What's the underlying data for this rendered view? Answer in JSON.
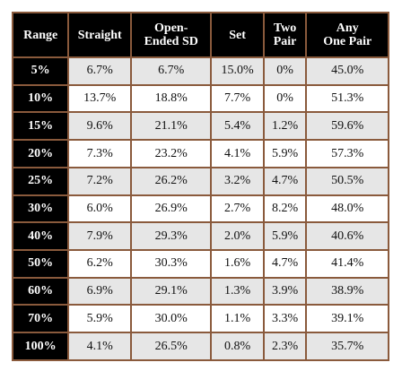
{
  "table": {
    "headers": [
      {
        "lines": [
          "Range"
        ]
      },
      {
        "lines": [
          "Straight"
        ]
      },
      {
        "lines": [
          "Open-",
          "Ended SD"
        ]
      },
      {
        "lines": [
          "Set"
        ]
      },
      {
        "lines": [
          "Two",
          "Pair"
        ]
      },
      {
        "lines": [
          "Any",
          "One Pair"
        ]
      }
    ],
    "rows": [
      {
        "range": "5%",
        "straight": "6.7%",
        "open_ended_sd": "6.7%",
        "set": "15.0%",
        "two_pair": "0%",
        "any_one_pair": "45.0%"
      },
      {
        "range": "10%",
        "straight": "13.7%",
        "open_ended_sd": "18.8%",
        "set": "7.7%",
        "two_pair": "0%",
        "any_one_pair": "51.3%"
      },
      {
        "range": "15%",
        "straight": "9.6%",
        "open_ended_sd": "21.1%",
        "set": "5.4%",
        "two_pair": "1.2%",
        "any_one_pair": "59.6%"
      },
      {
        "range": "20%",
        "straight": "7.3%",
        "open_ended_sd": "23.2%",
        "set": "4.1%",
        "two_pair": "5.9%",
        "any_one_pair": "57.3%"
      },
      {
        "range": "25%",
        "straight": "7.2%",
        "open_ended_sd": "26.2%",
        "set": "3.2%",
        "two_pair": "4.7%",
        "any_one_pair": "50.5%"
      },
      {
        "range": "30%",
        "straight": "6.0%",
        "open_ended_sd": "26.9%",
        "set": "2.7%",
        "two_pair": "8.2%",
        "any_one_pair": "48.0%"
      },
      {
        "range": "40%",
        "straight": "7.9%",
        "open_ended_sd": "29.3%",
        "set": "2.0%",
        "two_pair": "5.9%",
        "any_one_pair": "40.6%"
      },
      {
        "range": "50%",
        "straight": "6.2%",
        "open_ended_sd": "30.3%",
        "set": "1.6%",
        "two_pair": "4.7%",
        "any_one_pair": "41.4%"
      },
      {
        "range": "60%",
        "straight": "6.9%",
        "open_ended_sd": "29.1%",
        "set": "1.3%",
        "two_pair": "3.9%",
        "any_one_pair": "38.9%"
      },
      {
        "range": "70%",
        "straight": "5.9%",
        "open_ended_sd": "30.0%",
        "set": "1.1%",
        "two_pair": "3.3%",
        "any_one_pair": "39.1%"
      },
      {
        "range": "100%",
        "straight": "4.1%",
        "open_ended_sd": "26.5%",
        "set": "0.8%",
        "two_pair": "2.3%",
        "any_one_pair": "35.7%"
      }
    ]
  },
  "colors": {
    "header_bg": "#000000",
    "header_text": "#ffffff",
    "border": "#8a5a3c",
    "row_shade": "#e6e6e6",
    "row_plain": "#ffffff"
  }
}
